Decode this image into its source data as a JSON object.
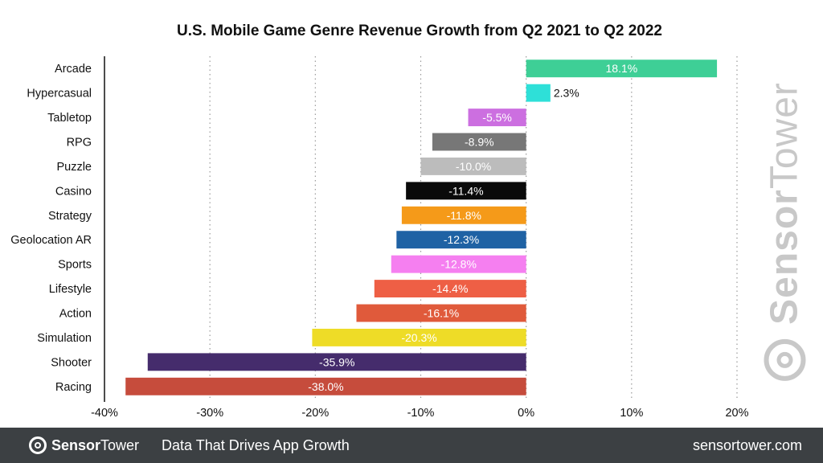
{
  "chart_data": {
    "type": "bar",
    "orientation": "horizontal",
    "title": "U.S. Mobile Game Genre Revenue Growth from Q2 2021 to Q2 2022",
    "xlabel": "",
    "ylabel": "",
    "xlim": [
      -40,
      20
    ],
    "x_ticks": [
      -40,
      -30,
      -20,
      -10,
      0,
      10,
      20
    ],
    "x_tick_labels": [
      "-40%",
      "-30%",
      "-20%",
      "-10%",
      "0%",
      "10%",
      "20%"
    ],
    "grid": "vertical dotted",
    "categories": [
      "Arcade",
      "Hypercasual",
      "Tabletop",
      "RPG",
      "Puzzle",
      "Casino",
      "Strategy",
      "Geolocation AR",
      "Sports",
      "Lifestyle",
      "Action",
      "Simulation",
      "Shooter",
      "Racing"
    ],
    "values": [
      18.1,
      2.3,
      -5.5,
      -8.9,
      -10.0,
      -11.4,
      -11.8,
      -12.3,
      -12.8,
      -14.4,
      -16.1,
      -20.3,
      -35.9,
      -38.0
    ],
    "value_labels": [
      "18.1%",
      "2.3%",
      "-5.5%",
      "-8.9%",
      "-10.0%",
      "-11.4%",
      "-11.8%",
      "-12.3%",
      "-12.8%",
      "-14.4%",
      "-16.1%",
      "-20.3%",
      "-35.9%",
      "-38.0%"
    ],
    "colors": [
      "#3ecf96",
      "#2ee0d8",
      "#cc6fe0",
      "#777777",
      "#bcbcbc",
      "#0a0a0a",
      "#f59a19",
      "#1f62a4",
      "#f57ff0",
      "#ee5f45",
      "#e05a3b",
      "#eedc27",
      "#452c6c",
      "#c64c3c"
    ]
  },
  "watermark": {
    "bold": "Sensor",
    "light": "Tower"
  },
  "footer": {
    "brand_bold": "Sensor",
    "brand_light": "Tower",
    "tagline": "Data That Drives App Growth",
    "url": "sensortower.com",
    "background": "#3c4043"
  }
}
